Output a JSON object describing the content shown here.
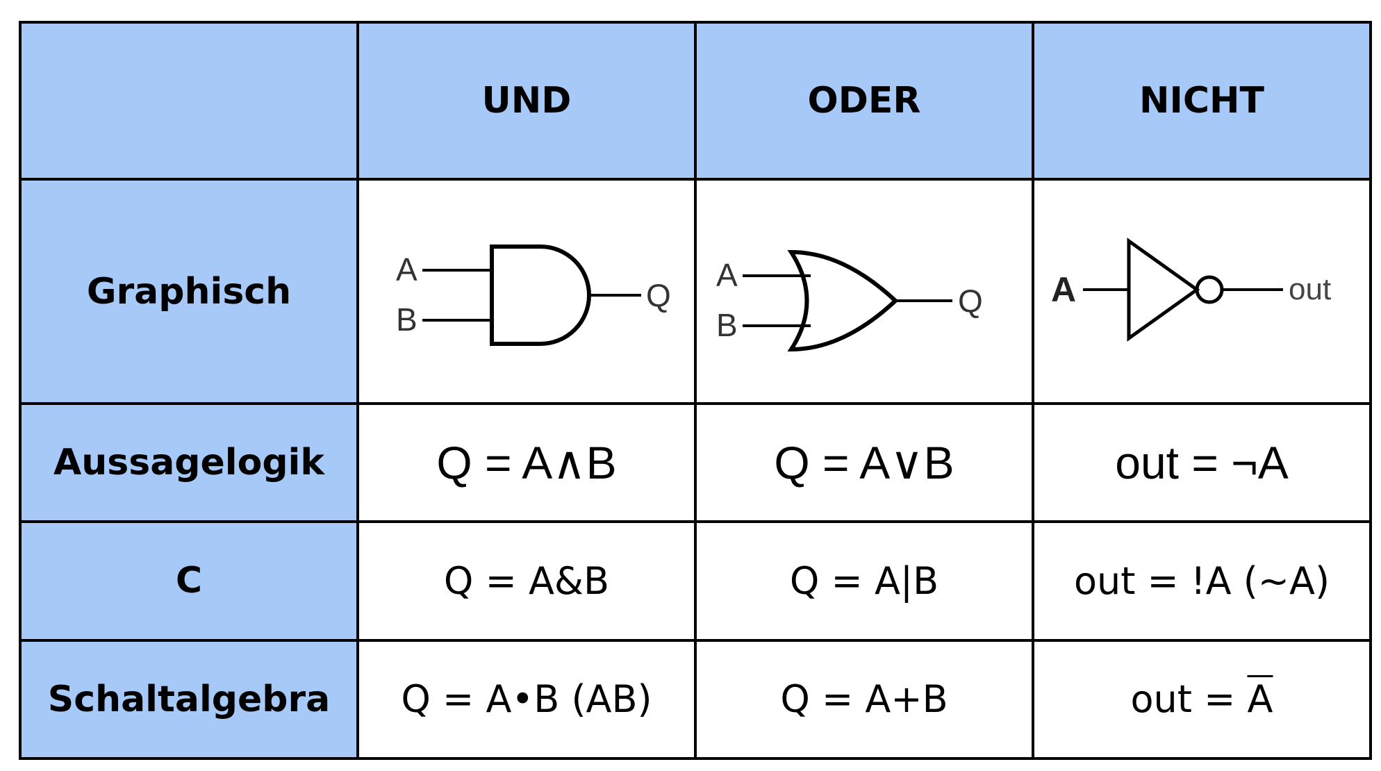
{
  "header": {
    "corner": "",
    "columns": [
      "UND",
      "ODER",
      "NICHT"
    ]
  },
  "rows": {
    "graphisch": {
      "label": "Graphisch",
      "and_gate": {
        "input_a": "A",
        "input_b": "B",
        "output": "Q"
      },
      "or_gate": {
        "input_a": "A",
        "input_b": "B",
        "output": "Q"
      },
      "not_gate": {
        "input_a": "A",
        "output": "out"
      }
    },
    "aussagelogik": {
      "label": "Aussagelogik",
      "und": "Q = A∧B",
      "oder": "Q = A∨B",
      "nicht": "out = ¬A"
    },
    "c": {
      "label": "C",
      "und": "Q = A&B",
      "oder": "Q = A|B",
      "nicht": "out = !A (~A)"
    },
    "schaltalgebra": {
      "label": "Schaltalgebra",
      "und": "Q = A•B (AB)",
      "oder": "Q = A+B",
      "nicht_prefix": "out = ",
      "nicht_overlined": "A"
    }
  },
  "colors": {
    "header_fill": "#a7c9f7",
    "border": "#000000",
    "cell_fill": "#ffffff"
  }
}
